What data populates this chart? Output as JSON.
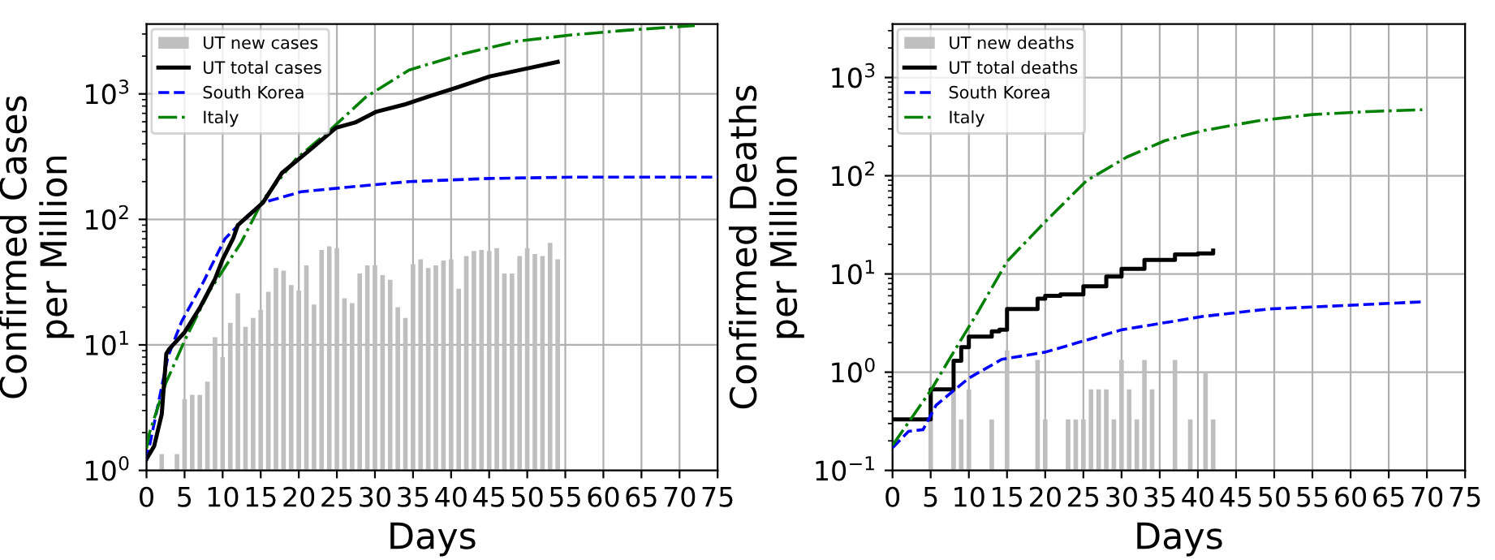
{
  "chart_data": [
    {
      "type": "line",
      "xlabel": "Days",
      "ylabel": "Confirmed Cases\nper Million",
      "log": "y",
      "grid": true,
      "legend": "top left",
      "xlim": [
        0,
        75
      ],
      "xticks": [
        0,
        5,
        10,
        15,
        20,
        25,
        30,
        35,
        40,
        45,
        50,
        55,
        60,
        65,
        70,
        75
      ],
      "ylim": [
        1,
        3600
      ],
      "yticks": [
        {
          "value": 1,
          "label": "10$^{0}$"
        },
        {
          "value": 10,
          "label": "10$^{1}$"
        },
        {
          "value": 100,
          "label": "10$^{2}$"
        },
        {
          "value": 1000,
          "label": "10$^{3}$"
        }
      ],
      "series": [
        {
          "name": "UT new cases",
          "type": "bar",
          "color": "#bfbfbf",
          "x": [
            2,
            4,
            5,
            6,
            7,
            8,
            9,
            10,
            11,
            12,
            13,
            14,
            15,
            16,
            17,
            18,
            19,
            20,
            21,
            22,
            23,
            24,
            25,
            26,
            27,
            28,
            29,
            30,
            31,
            32,
            33,
            34,
            35,
            36,
            37,
            38,
            39,
            40,
            41,
            42,
            43,
            44,
            45,
            46,
            47,
            48,
            49,
            50,
            51,
            52,
            53,
            54
          ],
          "values": [
            1.35,
            1.35,
            3.7,
            4.0,
            4.0,
            5.1,
            11.5,
            8.0,
            15,
            25.7,
            13.9,
            16.4,
            19,
            26.5,
            41,
            39,
            30,
            27,
            43,
            21,
            57,
            61,
            59,
            23.5,
            21.5,
            37,
            43,
            43,
            36,
            33,
            20,
            16.4,
            44,
            48,
            41,
            43,
            47,
            48,
            28,
            51,
            56,
            57,
            56,
            59,
            37,
            37,
            51,
            59,
            53,
            51,
            65,
            48
          ]
        },
        {
          "name": "UT total cases",
          "color": "#000000",
          "line_style": "solid",
          "x": [
            0,
            1,
            2,
            2.6,
            3,
            5,
            7,
            9,
            10,
            11.4,
            12,
            15.3,
            17.8,
            21.7,
            24.9,
            27.4,
            30.2,
            34.1,
            37.3,
            40.9,
            45.1,
            50.1,
            54
          ],
          "values": [
            1.23,
            1.56,
            2.8,
            8.5,
            9.3,
            12.6,
            19.7,
            33.6,
            48,
            71,
            90,
            136,
            235,
            368,
            537,
            592,
            722,
            830,
            964,
            1130,
            1378,
            1600,
            1800
          ]
        },
        {
          "name": "South Korea",
          "color": "#0000ff",
          "line_style": "dashed",
          "x": [
            0,
            1.8,
            2.8,
            4.6,
            7.5,
            10.3,
            13.2,
            15.3,
            20.3,
            27.4,
            34.5,
            45.1,
            55.8,
            75
          ],
          "values": [
            1.2,
            4.05,
            8,
            15.3,
            32,
            70,
            106,
            136,
            166,
            183,
            200,
            212,
            217,
            217
          ]
        },
        {
          "name": "Italy",
          "color": "#008000",
          "line_style": "dashdot",
          "x": [
            0,
            0.4,
            2.5,
            5,
            8.2,
            12.4,
            15.3,
            19.6,
            23.8,
            28.8,
            34.5,
            41.6,
            48.7,
            55.8,
            62.9,
            72
          ],
          "values": [
            1.5,
            2,
            4.9,
            10.8,
            26.5,
            65,
            143,
            302,
            495,
            944,
            1550,
            2090,
            2630,
            2950,
            3210,
            3500
          ]
        }
      ]
    },
    {
      "type": "line",
      "xlabel": "Days",
      "ylabel": "Confirmed Deaths\nper Million",
      "log": "y",
      "grid": true,
      "legend": "top left",
      "xlim": [
        0,
        75
      ],
      "xticks": [
        0,
        5,
        10,
        15,
        20,
        25,
        30,
        35,
        40,
        45,
        50,
        55,
        60,
        65,
        70,
        75
      ],
      "ylim": [
        0.1,
        3500
      ],
      "yticks": [
        {
          "value": 0.1,
          "label": "10$^{−1}$"
        },
        {
          "value": 1,
          "label": "10$^{0}$"
        },
        {
          "value": 10,
          "label": "10$^{1}$"
        },
        {
          "value": 100,
          "label": "10$^{2}$"
        },
        {
          "value": 1000,
          "label": "10$^{3}$"
        }
      ],
      "series": [
        {
          "name": "UT new deaths",
          "type": "bar",
          "color": "#bfbfbf",
          "x": [
            5,
            8,
            9,
            10,
            13,
            15,
            19,
            20,
            23,
            24,
            25,
            26,
            27,
            28,
            29,
            30,
            31,
            32,
            33,
            34,
            37,
            39,
            41,
            42
          ],
          "values": [
            0.67,
            0.67,
            0.33,
            0.67,
            0.33,
            1.67,
            1.33,
            0.33,
            0.33,
            0.33,
            0.33,
            0.67,
            0.67,
            0.67,
            0.33,
            1.33,
            0.67,
            0.33,
            1.33,
            0.67,
            1.33,
            0.33,
            1.0,
            0.33
          ]
        },
        {
          "name": "UT total deaths",
          "type": "step",
          "color": "#000000",
          "line_style": "solid",
          "x": [
            0,
            5,
            8,
            9,
            10,
            13,
            14,
            15,
            19,
            20,
            22,
            25,
            28,
            30,
            33,
            36,
            37,
            40,
            42
          ],
          "values": [
            0.33,
            0.67,
            1.31,
            1.8,
            2.3,
            2.6,
            2.7,
            4.4,
            5.6,
            6.0,
            6.2,
            7.5,
            9.4,
            11.3,
            13.9,
            13.9,
            15.8,
            16.2,
            17.3
          ]
        },
        {
          "name": "South Korea",
          "color": "#0000ff",
          "line_style": "dashed",
          "x": [
            0,
            2.1,
            4,
            5.7,
            7.8,
            10,
            14.3,
            20,
            30,
            40.7,
            49.3,
            69.4
          ],
          "values": [
            0.17,
            0.25,
            0.26,
            0.46,
            0.63,
            0.87,
            1.35,
            1.6,
            2.7,
            3.7,
            4.4,
            5.2
          ]
        },
        {
          "name": "Italy",
          "color": "#008000",
          "line_style": "dashdot",
          "x": [
            0,
            5,
            8,
            11.1,
            15,
            20,
            25.4,
            30.7,
            35.7,
            40.7,
            47.8,
            55,
            62.3,
            69.4
          ],
          "values": [
            0.18,
            0.65,
            1.6,
            4.0,
            13.4,
            34,
            89,
            155,
            228,
            288,
            362,
            420,
            450,
            470
          ]
        }
      ]
    }
  ]
}
